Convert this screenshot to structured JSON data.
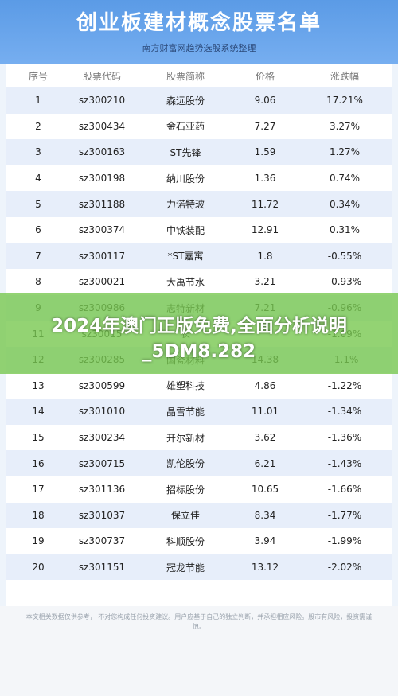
{
  "header": {
    "title": "创业板建材概念股票名单",
    "subtitle": "南方财富网趋势选股系统整理"
  },
  "table": {
    "columns": [
      "序号",
      "股票代码",
      "股票简称",
      "价格",
      "涨跌幅"
    ],
    "rows": [
      [
        "1",
        "sz300210",
        "森远股份",
        "9.06",
        "17.21%"
      ],
      [
        "2",
        "sz300434",
        "金石亚药",
        "7.27",
        "3.27%"
      ],
      [
        "3",
        "sz300163",
        "ST先锋",
        "1.59",
        "1.27%"
      ],
      [
        "4",
        "sz300198",
        "纳川股份",
        "1.36",
        "0.74%"
      ],
      [
        "5",
        "sz301188",
        "力诺特玻",
        "11.72",
        "0.34%"
      ],
      [
        "6",
        "sz300374",
        "中铁装配",
        "12.91",
        "0.31%"
      ],
      [
        "7",
        "sz300117",
        "*ST嘉寓",
        "1.8",
        "-0.55%"
      ],
      [
        "8",
        "sz300021",
        "大禹节水",
        "3.21",
        "-0.93%"
      ],
      [
        "9",
        "sz300986",
        "志特新材",
        "7.21",
        "-0.96%"
      ],
      [
        "11",
        "sz30015",
        "长",
        "",
        "-1.09%"
      ],
      [
        "12",
        "sz300285",
        "国瓷材料",
        "14.38",
        "-1.1%"
      ],
      [
        "13",
        "sz300599",
        "雄塑科技",
        "4.86",
        "-1.22%"
      ],
      [
        "14",
        "sz301010",
        "晶雪节能",
        "11.01",
        "-1.34%"
      ],
      [
        "15",
        "sz300234",
        "开尔新材",
        "3.62",
        "-1.36%"
      ],
      [
        "16",
        "sz300715",
        "凯伦股份",
        "6.21",
        "-1.43%"
      ],
      [
        "17",
        "sz301136",
        "招标股份",
        "10.65",
        "-1.66%"
      ],
      [
        "18",
        "sz301037",
        "保立佳",
        "8.34",
        "-1.77%"
      ],
      [
        "19",
        "sz300737",
        "科顺股份",
        "3.94",
        "-1.99%"
      ],
      [
        "20",
        "sz301151",
        "冠龙节能",
        "13.12",
        "-2.02%"
      ]
    ]
  },
  "footer": {
    "disclaimer": "本文相关数据仅供参考， 不对您构成任何投资建议。用户应基于自己的独立判断，并承担相应风险。股市有风险，投资需谨慎。"
  },
  "overlay": {
    "text": "2024年澳门正版免费,全面分析说明_5DM8.282"
  }
}
